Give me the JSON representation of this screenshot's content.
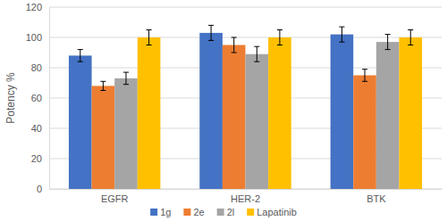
{
  "chart_data": {
    "type": "bar",
    "y_label": "Potency %",
    "categories": [
      "EGFR",
      "HER-2",
      "BTK"
    ],
    "series": [
      {
        "name": "1g",
        "color": "#4472c4",
        "values": [
          88,
          103,
          102
        ],
        "errors": [
          4,
          5,
          5
        ]
      },
      {
        "name": "2e",
        "color": "#ed7d31",
        "values": [
          68,
          95,
          75
        ],
        "errors": [
          3,
          5,
          4
        ]
      },
      {
        "name": "2l",
        "color": "#a5a5a5",
        "values": [
          73,
          89,
          97
        ],
        "errors": [
          4,
          5,
          5
        ]
      },
      {
        "name": "Lapatinib",
        "color": "#ffc000",
        "values": [
          100,
          100,
          100
        ],
        "errors": [
          5,
          5,
          5
        ]
      }
    ],
    "ylim": [
      0,
      120
    ],
    "yticks": [
      0,
      20,
      40,
      60,
      80,
      100,
      120
    ],
    "grid": true,
    "legend": "bottom"
  }
}
